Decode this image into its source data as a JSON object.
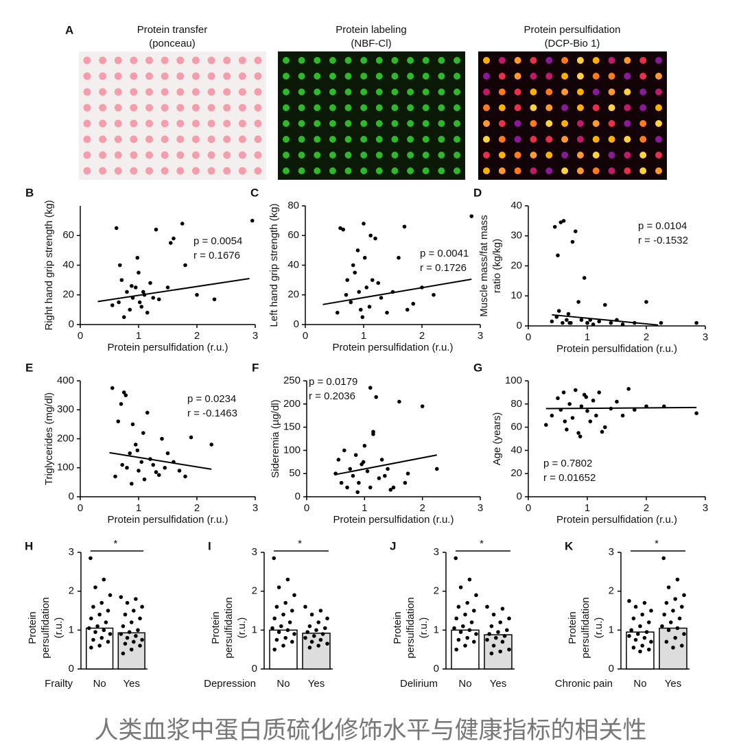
{
  "panel_a": {
    "label": "A",
    "images": [
      {
        "title": "Protein transfer",
        "subtitle": "(ponceau)"
      },
      {
        "title": "Protein labeling",
        "subtitle": "(NBF-Cl)"
      },
      {
        "title": "Protein persulfidation",
        "subtitle": "(DCP-Bio 1)"
      }
    ]
  },
  "chart_data": [
    {
      "type": "scatter",
      "panel": "B",
      "ylabel": [
        "Right hand grip strength (kg)"
      ],
      "xlabel": "Protein persulfidation (r.u.)",
      "xlim": [
        0,
        3
      ],
      "xticks": [
        0,
        1,
        2,
        3
      ],
      "ylim": [
        0,
        80
      ],
      "yticks": [
        0,
        20,
        40,
        60
      ],
      "annotations": [
        "p = 0.0054",
        "r = 0.1676"
      ],
      "x": [
        0.62,
        0.71,
        0.8,
        0.85,
        0.9,
        0.95,
        1.0,
        1.02,
        1.05,
        1.1,
        1.15,
        1.2,
        1.25,
        1.3,
        0.55,
        0.68,
        0.75,
        0.88,
        0.98,
        1.08,
        1.35,
        1.5,
        1.6,
        1.75,
        1.8,
        2.0,
        2.3,
        2.95,
        0.66,
        1.55
      ],
      "y": [
        65,
        30,
        22,
        10,
        18,
        25,
        35,
        15,
        12,
        20,
        8,
        28,
        18,
        64,
        13,
        40,
        5,
        26,
        45,
        22,
        17,
        25,
        58,
        68,
        40,
        20,
        17,
        70,
        15,
        55
      ],
      "fit": {
        "x": [
          0.3,
          2.9
        ],
        "y": [
          15.5,
          31
        ]
      }
    },
    {
      "type": "scatter",
      "panel": "C",
      "ylabel": [
        "Left hand grip strength (kg)"
      ],
      "xlabel": "Protein persulfidation (r.u.)",
      "xlim": [
        0,
        3
      ],
      "xticks": [
        0,
        1,
        2,
        3
      ],
      "ylim": [
        0,
        80
      ],
      "yticks": [
        0,
        20,
        40,
        60,
        80
      ],
      "annotations": [
        "p = 0.0041",
        "r = 0.1726"
      ],
      "x": [
        0.6,
        0.7,
        0.78,
        0.85,
        0.9,
        0.95,
        1.0,
        1.05,
        1.1,
        1.15,
        1.2,
        1.3,
        1.4,
        0.55,
        0.65,
        0.82,
        0.92,
        1.02,
        1.12,
        1.5,
        1.6,
        1.7,
        1.75,
        1.85,
        2.0,
        2.2,
        2.85,
        0.98,
        1.25,
        0.72
      ],
      "y": [
        65,
        20,
        15,
        35,
        50,
        10,
        68,
        25,
        12,
        30,
        58,
        18,
        8,
        8,
        64,
        40,
        22,
        45,
        60,
        22,
        45,
        66,
        10,
        14,
        25,
        20,
        73,
        5,
        28,
        30
      ],
      "fit": {
        "x": [
          0.3,
          2.85
        ],
        "y": [
          13.5,
          30.5
        ]
      }
    },
    {
      "type": "scatter",
      "panel": "D",
      "ylabel": [
        "Muscle mass/fat mass",
        "ratio (kg/kg)"
      ],
      "xlabel": "Protein persulfidation (r.u.)",
      "xlim": [
        0,
        3
      ],
      "xticks": [
        0,
        1,
        2,
        3
      ],
      "ylim": [
        0,
        40
      ],
      "yticks": [
        0,
        10,
        20,
        30,
        40
      ],
      "annotations": [
        "p = 0.0104",
        "r = -0.1532"
      ],
      "x": [
        0.4,
        0.45,
        0.5,
        0.55,
        0.6,
        0.65,
        0.7,
        0.75,
        0.8,
        0.85,
        0.9,
        0.95,
        1.0,
        1.05,
        1.1,
        1.2,
        1.3,
        1.4,
        1.5,
        1.6,
        1.8,
        2.0,
        2.25,
        2.85,
        0.52,
        0.58,
        0.68,
        0.72,
        1.0,
        0.48
      ],
      "y": [
        1.5,
        33,
        23.5,
        34.5,
        35,
        2,
        1,
        28,
        31.5,
        8,
        2,
        16,
        1,
        2,
        0.5,
        1.5,
        7,
        1,
        2,
        0.5,
        1,
        8,
        1,
        1,
        5,
        1,
        4,
        1,
        1,
        3
      ],
      "fit": {
        "x": [
          0.4,
          2.2
        ],
        "y": [
          3.7,
          0.3
        ]
      }
    },
    {
      "type": "scatter",
      "panel": "E",
      "ylabel": [
        "Triglycerides (mg/dl)"
      ],
      "xlabel": "Protein persulfidation (r.u.)",
      "xlim": [
        0,
        3
      ],
      "xticks": [
        0,
        1,
        2,
        3
      ],
      "ylim": [
        0,
        400
      ],
      "yticks": [
        0,
        100,
        200,
        300,
        400
      ],
      "annotations": [
        "p = 0.0234",
        "r = -0.1463"
      ],
      "x": [
        0.55,
        0.6,
        0.7,
        0.75,
        0.8,
        0.85,
        0.9,
        0.95,
        1.0,
        1.05,
        1.1,
        1.15,
        1.2,
        1.25,
        1.3,
        1.4,
        1.5,
        1.6,
        1.7,
        1.8,
        1.9,
        2.25,
        0.65,
        0.88,
        0.98,
        1.08,
        0.72,
        0.78,
        1.35,
        1.45
      ],
      "y": [
        375,
        70,
        320,
        360,
        100,
        150,
        250,
        180,
        90,
        120,
        60,
        290,
        130,
        110,
        85,
        200,
        150,
        120,
        90,
        70,
        205,
        180,
        260,
        45,
        160,
        220,
        110,
        350,
        75,
        100
      ],
      "fit": {
        "x": [
          0.5,
          2.25
        ],
        "y": [
          152,
          95
        ]
      }
    },
    {
      "type": "scatter",
      "panel": "F",
      "ylabel": [
        "Sideremia (µg/dl)"
      ],
      "xlabel": "Protein persulfidation (r.u.)",
      "xlim": [
        0,
        3
      ],
      "xticks": [
        0,
        1,
        2,
        3
      ],
      "ylim": [
        0,
        250
      ],
      "yticks": [
        0,
        50,
        100,
        150,
        200,
        250
      ],
      "annotations": [
        "p = 0.0179",
        "r = 0.2036"
      ],
      "x": [
        0.5,
        0.55,
        0.6,
        0.65,
        0.7,
        0.75,
        0.8,
        0.85,
        0.9,
        0.95,
        1.0,
        1.05,
        1.1,
        1.15,
        1.2,
        1.25,
        1.3,
        1.4,
        1.5,
        1.6,
        1.7,
        2.0,
        2.25,
        1.1,
        1.15,
        1.35,
        0.88,
        0.98,
        1.45,
        1.75
      ],
      "y": [
        50,
        80,
        30,
        100,
        20,
        60,
        45,
        90,
        30,
        70,
        110,
        55,
        235,
        135,
        215,
        40,
        80,
        60,
        20,
        205,
        30,
        195,
        60,
        20,
        140,
        45,
        10,
        75,
        15,
        50
      ],
      "fit": {
        "x": [
          0.5,
          2.25
        ],
        "y": [
          48,
          90
        ]
      }
    },
    {
      "type": "scatter",
      "panel": "G",
      "ylabel": [
        "Age (years)"
      ],
      "xlabel": "Protein persulfidation (r.u.)",
      "xlim": [
        0,
        3
      ],
      "xticks": [
        0,
        1,
        2,
        3
      ],
      "ylim": [
        0,
        100
      ],
      "yticks": [
        0,
        20,
        40,
        60,
        80,
        100
      ],
      "annotations": [
        "p = 0.7802",
        "r = 0.01652"
      ],
      "x": [
        0.3,
        0.4,
        0.5,
        0.55,
        0.6,
        0.65,
        0.7,
        0.75,
        0.8,
        0.85,
        0.9,
        0.95,
        1.0,
        1.05,
        1.1,
        1.15,
        1.2,
        1.3,
        1.4,
        1.5,
        1.6,
        1.7,
        1.8,
        2.0,
        2.3,
        2.85,
        0.62,
        0.88,
        0.98,
        1.25
      ],
      "y": [
        62,
        70,
        85,
        75,
        90,
        58,
        80,
        68,
        92,
        55,
        78,
        88,
        74,
        65,
        83,
        70,
        90,
        60,
        76,
        82,
        70,
        93,
        75,
        78,
        78,
        72,
        65,
        52,
        86,
        56
      ],
      "fit": {
        "x": [
          0.3,
          2.85
        ],
        "y": [
          76,
          77
        ]
      }
    },
    {
      "type": "bar",
      "panel": "H",
      "group": "Frailty",
      "ylabel": [
        "Protein",
        "persulfidation",
        "(r.u.)"
      ],
      "categories": [
        "No",
        "Yes"
      ],
      "values": [
        1.05,
        0.93
      ],
      "colors": [
        "#ffffff",
        "#dddddd"
      ],
      "significance": "*",
      "ylim": [
        0,
        3
      ],
      "yticks": [
        0,
        1,
        2,
        3
      ],
      "points": [
        [
          2.85,
          2.3,
          2.1,
          1.9,
          1.7,
          1.6,
          1.5,
          1.4,
          1.3,
          1.2,
          1.1,
          1.05,
          1.0,
          0.95,
          0.9,
          0.8,
          0.75,
          0.7,
          0.6,
          0.55
        ],
        [
          1.85,
          1.8,
          1.7,
          1.6,
          1.5,
          1.4,
          1.3,
          1.2,
          1.1,
          1.0,
          0.95,
          0.9,
          0.85,
          0.8,
          0.75,
          0.7,
          0.65,
          0.6,
          0.5,
          0.4
        ]
      ]
    },
    {
      "type": "bar",
      "panel": "I",
      "group": "Depression",
      "ylabel": [
        "Protein",
        "persulfidation",
        "(r.u.)"
      ],
      "categories": [
        "No",
        "Yes"
      ],
      "values": [
        1.0,
        0.92
      ],
      "colors": [
        "#ffffff",
        "#dddddd"
      ],
      "significance": "*",
      "ylim": [
        0,
        3
      ],
      "yticks": [
        0,
        1,
        2,
        3
      ],
      "points": [
        [
          2.85,
          2.3,
          2.1,
          1.9,
          1.7,
          1.6,
          1.5,
          1.4,
          1.3,
          1.2,
          1.1,
          1.05,
          1.0,
          0.95,
          0.9,
          0.8,
          0.75,
          0.7,
          0.6,
          0.5
        ],
        [
          1.6,
          1.5,
          1.4,
          1.3,
          1.2,
          1.1,
          1.05,
          1.0,
          0.95,
          0.9,
          0.85,
          0.8,
          0.75,
          0.7,
          0.65,
          0.6,
          0.55
        ]
      ]
    },
    {
      "type": "bar",
      "panel": "J",
      "group": "Delirium",
      "ylabel": [
        "Protein",
        "persulfidation",
        "(r.u.)"
      ],
      "categories": [
        "No",
        "Yes"
      ],
      "values": [
        1.0,
        0.88
      ],
      "colors": [
        "#ffffff",
        "#dddddd"
      ],
      "significance": "*",
      "ylim": [
        0,
        3
      ],
      "yticks": [
        0,
        1,
        2,
        3
      ],
      "points": [
        [
          2.85,
          2.3,
          2.1,
          1.9,
          1.7,
          1.6,
          1.5,
          1.4,
          1.3,
          1.2,
          1.1,
          1.05,
          1.0,
          0.95,
          0.9,
          0.8,
          0.75,
          0.7,
          0.6,
          0.5
        ],
        [
          1.6,
          1.55,
          1.4,
          1.3,
          1.2,
          1.1,
          1.0,
          0.95,
          0.9,
          0.85,
          0.8,
          0.75,
          0.7,
          0.6,
          0.5,
          0.45,
          0.4
        ]
      ]
    },
    {
      "type": "bar",
      "panel": "K",
      "group": "Chronic pain",
      "ylabel": [
        "Protein",
        "persulfidation",
        "(r.u.)"
      ],
      "categories": [
        "No",
        "Yes"
      ],
      "values": [
        0.95,
        1.05
      ],
      "colors": [
        "#ffffff",
        "#dddddd"
      ],
      "significance": "*",
      "ylim": [
        0,
        3
      ],
      "yticks": [
        0,
        1,
        2,
        3
      ],
      "points": [
        [
          1.75,
          1.7,
          1.6,
          1.5,
          1.4,
          1.3,
          1.2,
          1.1,
          1.0,
          0.95,
          0.9,
          0.85,
          0.8,
          0.75,
          0.7,
          0.6,
          0.55,
          0.5,
          0.45
        ],
        [
          2.85,
          2.3,
          2.1,
          1.9,
          1.8,
          1.7,
          1.6,
          1.5,
          1.4,
          1.3,
          1.2,
          1.1,
          1.05,
          1.0,
          0.9,
          0.8,
          0.7,
          0.6,
          0.55
        ]
      ]
    }
  ],
  "caption": "人类血浆中蛋白质硫化修饰水平与健康指标的相关性"
}
